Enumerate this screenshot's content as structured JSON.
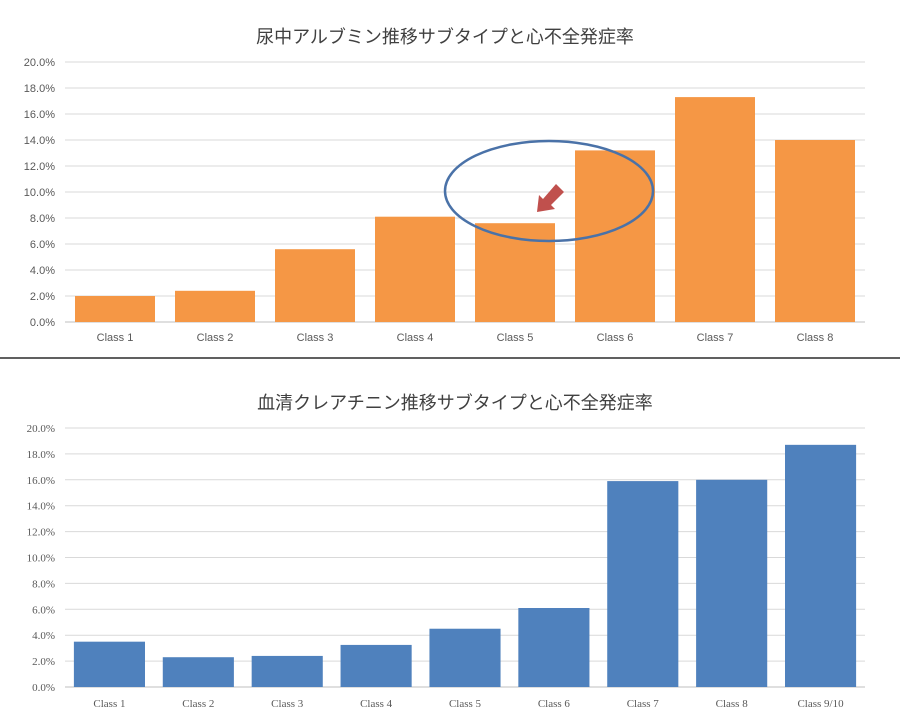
{
  "chart_data": [
    {
      "type": "bar",
      "title": "尿中アルブミン推移サブタイプと心不全発症率",
      "categories": [
        "Class 1",
        "Class 2",
        "Class 3",
        "Class 4",
        "Class 5",
        "Class 6",
        "Class 7",
        "Class 8"
      ],
      "values": [
        2.0,
        2.4,
        5.6,
        8.1,
        7.6,
        13.2,
        17.3,
        14.0
      ],
      "unit": "%",
      "yticks": [
        "0.0%",
        "2.0%",
        "4.0%",
        "6.0%",
        "8.0%",
        "10.0%",
        "12.0%",
        "14.0%",
        "16.0%",
        "18.0%",
        "20.0%"
      ],
      "ylim": [
        0,
        20
      ],
      "xlabel": "",
      "ylabel": "",
      "grid": true,
      "color": "#f59745",
      "annotation": {
        "type": "ellipse-and-arrow",
        "target": "Class 5",
        "ellipse_color": "#4a72a8",
        "arrow_color": "#c0504d"
      }
    },
    {
      "type": "bar",
      "title": "血清クレアチニン推移サブタイプと心不全発症率",
      "categories": [
        "Class 1",
        "Class 2",
        "Class 3",
        "Class 4",
        "Class 5",
        "Class 6",
        "Class 7",
        "Class 8",
        "Class 9/10"
      ],
      "values": [
        3.5,
        2.3,
        2.4,
        3.25,
        4.5,
        6.1,
        15.9,
        16.0,
        18.7
      ],
      "unit": "%",
      "yticks": [
        "0.0%",
        "2.0%",
        "4.0%",
        "6.0%",
        "8.0%",
        "10.0%",
        "12.0%",
        "14.0%",
        "16.0%",
        "18.0%",
        "20.0%"
      ],
      "ylim": [
        0,
        20
      ],
      "xlabel": "",
      "ylabel": "",
      "grid": true,
      "color": "#4f81bd"
    }
  ]
}
